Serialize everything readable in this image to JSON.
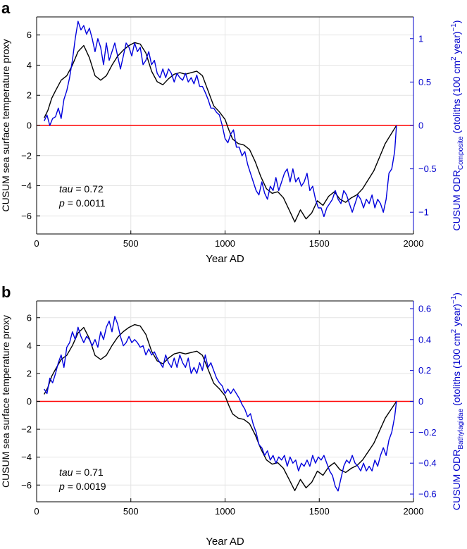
{
  "chart_data": [
    {
      "panel_label": "a",
      "type": "line",
      "xlabel": "Year AD",
      "ylabel": "CUSUM sea surface temperature proxy",
      "ylabel_right_pre": "CUSUM ODR",
      "ylabel_right_sub": "Composite",
      "ylabel_right_post": " (otoliths (100 cm",
      "ylabel_right_sup": "2",
      "ylabel_right_tail": " year)",
      "ylabel_right_sup2": "−1",
      "ylabel_right_close": ")",
      "xlim": [
        0,
        2000
      ],
      "ylim": [
        -7.2,
        7.2
      ],
      "y2lim": [
        -1.25,
        1.25
      ],
      "xticks": [
        0,
        500,
        1000,
        1500,
        2000
      ],
      "xtick_labels": [
        "0",
        "500",
        "1000",
        "1500",
        "2000"
      ],
      "yticks": [
        -6,
        -4,
        -2,
        0,
        2,
        4,
        6
      ],
      "ytick_labels": [
        "−6",
        "−4",
        "−2",
        "0",
        "2",
        "4",
        "6"
      ],
      "y2ticks": [
        -1,
        -0.5,
        0,
        0.5,
        1
      ],
      "y2tick_labels": [
        "−1",
        "−0.5",
        "0",
        "0.5",
        "1"
      ],
      "grid": true,
      "zero_line_color": "#ff0000",
      "annotation": {
        "tau_label": "tau",
        "tau_value": "= 0.72",
        "p_label": "p",
        "p_value": "= 0.0011"
      },
      "series": [
        {
          "name": "CUSUM sea surface temperature proxy",
          "axis": "left",
          "color": "#000000",
          "x": [
            40,
            60,
            80,
            100,
            130,
            160,
            190,
            220,
            250,
            280,
            310,
            340,
            370,
            400,
            430,
            460,
            490,
            520,
            550,
            580,
            610,
            640,
            670,
            700,
            730,
            760,
            790,
            820,
            850,
            880,
            910,
            940,
            970,
            1000,
            1020,
            1040,
            1070,
            1100,
            1130,
            1160,
            1190,
            1220,
            1250,
            1280,
            1310,
            1340,
            1370,
            1400,
            1430,
            1460,
            1490,
            1520,
            1550,
            1580,
            1610,
            1640,
            1670,
            1700,
            1730,
            1760,
            1790,
            1820,
            1850,
            1880,
            1910
          ],
          "values": [
            0.5,
            1.0,
            1.8,
            2.3,
            3.0,
            3.3,
            4.0,
            4.9,
            5.3,
            4.5,
            3.3,
            3.0,
            3.3,
            4.0,
            4.6,
            5.0,
            5.3,
            5.5,
            5.4,
            4.8,
            3.6,
            2.9,
            2.7,
            3.1,
            3.4,
            3.5,
            3.4,
            3.5,
            3.6,
            3.3,
            2.3,
            1.3,
            0.9,
            0.4,
            -0.3,
            -0.9,
            -1.2,
            -1.3,
            -1.6,
            -2.4,
            -3.4,
            -4.2,
            -4.5,
            -4.4,
            -4.8,
            -5.6,
            -6.4,
            -5.6,
            -6.2,
            -5.8,
            -5.0,
            -5.3,
            -4.7,
            -4.4,
            -4.9,
            -5.1,
            -4.8,
            -4.6,
            -4.2,
            -3.6,
            -3.0,
            -2.1,
            -1.2,
            -0.6,
            0.0
          ]
        },
        {
          "name": "CUSUM ODR Composite",
          "axis": "right",
          "color": "#0000dd",
          "x": [
            40,
            55,
            70,
            85,
            100,
            115,
            130,
            145,
            160,
            175,
            190,
            205,
            220,
            235,
            250,
            265,
            280,
            295,
            310,
            325,
            340,
            355,
            370,
            385,
            400,
            415,
            430,
            445,
            460,
            475,
            490,
            505,
            520,
            535,
            550,
            565,
            580,
            595,
            610,
            625,
            640,
            655,
            670,
            685,
            700,
            715,
            730,
            745,
            760,
            775,
            790,
            805,
            820,
            835,
            850,
            865,
            880,
            895,
            910,
            925,
            940,
            955,
            970,
            985,
            1000,
            1015,
            1030,
            1045,
            1060,
            1075,
            1090,
            1105,
            1120,
            1135,
            1150,
            1165,
            1180,
            1195,
            1210,
            1225,
            1240,
            1255,
            1270,
            1285,
            1300,
            1315,
            1330,
            1345,
            1360,
            1375,
            1390,
            1405,
            1420,
            1435,
            1450,
            1465,
            1480,
            1495,
            1510,
            1525,
            1540,
            1555,
            1570,
            1585,
            1600,
            1615,
            1630,
            1645,
            1660,
            1675,
            1690,
            1705,
            1720,
            1735,
            1750,
            1765,
            1780,
            1795,
            1810,
            1825,
            1840,
            1855,
            1870,
            1885,
            1900,
            1910
          ],
          "values": [
            0.05,
            0.12,
            0.0,
            0.08,
            0.1,
            0.2,
            0.08,
            0.3,
            0.4,
            0.55,
            0.75,
            1.0,
            1.2,
            1.1,
            1.15,
            1.05,
            1.12,
            1.0,
            0.85,
            1.0,
            0.9,
            0.7,
            0.95,
            0.75,
            0.85,
            0.95,
            0.8,
            0.65,
            0.8,
            0.95,
            0.9,
            0.8,
            0.95,
            0.85,
            0.9,
            0.7,
            0.75,
            0.85,
            0.7,
            0.75,
            0.6,
            0.55,
            0.65,
            0.55,
            0.65,
            0.6,
            0.5,
            0.6,
            0.55,
            0.52,
            0.6,
            0.5,
            0.55,
            0.48,
            0.58,
            0.45,
            0.45,
            0.38,
            0.3,
            0.2,
            0.2,
            0.15,
            0.12,
            0.0,
            -0.15,
            -0.2,
            -0.1,
            -0.05,
            -0.25,
            -0.25,
            -0.35,
            -0.3,
            -0.45,
            -0.55,
            -0.65,
            -0.75,
            -0.8,
            -0.65,
            -0.78,
            -0.85,
            -0.7,
            -0.75,
            -0.6,
            -0.75,
            -0.65,
            -0.55,
            -0.5,
            -0.65,
            -0.5,
            -0.65,
            -0.6,
            -0.7,
            -0.65,
            -0.55,
            -0.75,
            -0.7,
            -0.85,
            -0.95,
            -0.95,
            -1.05,
            -0.95,
            -0.9,
            -0.85,
            -0.75,
            -0.85,
            -0.9,
            -0.75,
            -0.8,
            -0.9,
            -1.0,
            -0.9,
            -0.8,
            -0.85,
            -0.95,
            -0.85,
            -0.9,
            -0.8,
            -0.95,
            -0.85,
            -0.9,
            -1.0,
            -0.85,
            -0.55,
            -0.5,
            -0.3,
            0.0
          ]
        }
      ]
    },
    {
      "panel_label": "b",
      "type": "line",
      "xlabel": "Year AD",
      "ylabel": "CUSUM sea surface temperature proxy",
      "ylabel_right_pre": "CUSUM ODR",
      "ylabel_right_sub": "Bathylagidae",
      "ylabel_right_post": " (otoliths (100 cm",
      "ylabel_right_sup": "2",
      "ylabel_right_tail": " year)",
      "ylabel_right_sup2": "−1",
      "ylabel_right_close": ")",
      "xlim": [
        0,
        2000
      ],
      "ylim": [
        -7.2,
        7.2
      ],
      "y2lim": [
        -0.65,
        0.65
      ],
      "xticks": [
        0,
        500,
        1000,
        1500,
        2000
      ],
      "xtick_labels": [
        "0",
        "500",
        "1000",
        "1500",
        "2000"
      ],
      "yticks": [
        -6,
        -4,
        -2,
        0,
        2,
        4,
        6
      ],
      "ytick_labels": [
        "−6",
        "−4",
        "−2",
        "0",
        "2",
        "4",
        "6"
      ],
      "y2ticks": [
        -0.6,
        -0.4,
        -0.2,
        0,
        0.2,
        0.4,
        0.6
      ],
      "y2tick_labels": [
        "−0.6",
        "−0.4",
        "−0.2",
        "0",
        "0.2",
        "0.4",
        "0.6"
      ],
      "grid": true,
      "zero_line_color": "#ff0000",
      "annotation": {
        "tau_label": "tau",
        "tau_value": "= 0.71",
        "p_label": "p",
        "p_value": "= 0.0019"
      },
      "series": [
        {
          "name": "CUSUM sea surface temperature proxy",
          "axis": "left",
          "color": "#000000",
          "x": [
            40,
            60,
            80,
            100,
            130,
            160,
            190,
            220,
            250,
            280,
            310,
            340,
            370,
            400,
            430,
            460,
            490,
            520,
            550,
            580,
            610,
            640,
            670,
            700,
            730,
            760,
            790,
            820,
            850,
            880,
            910,
            940,
            970,
            1000,
            1020,
            1040,
            1070,
            1100,
            1130,
            1160,
            1190,
            1220,
            1250,
            1280,
            1310,
            1340,
            1370,
            1400,
            1430,
            1460,
            1490,
            1520,
            1550,
            1580,
            1610,
            1640,
            1670,
            1700,
            1730,
            1760,
            1790,
            1820,
            1850,
            1880,
            1910
          ],
          "values": [
            0.5,
            1.0,
            1.8,
            2.3,
            3.0,
            3.3,
            4.0,
            4.9,
            5.3,
            4.5,
            3.3,
            3.0,
            3.3,
            4.0,
            4.6,
            5.0,
            5.3,
            5.5,
            5.4,
            4.8,
            3.6,
            2.9,
            2.7,
            3.1,
            3.4,
            3.5,
            3.4,
            3.5,
            3.6,
            3.3,
            2.3,
            1.3,
            0.9,
            0.4,
            -0.3,
            -0.9,
            -1.2,
            -1.3,
            -1.6,
            -2.4,
            -3.4,
            -4.2,
            -4.5,
            -4.4,
            -4.8,
            -5.6,
            -6.4,
            -5.6,
            -6.2,
            -5.8,
            -5.0,
            -5.3,
            -4.7,
            -4.4,
            -4.9,
            -5.1,
            -4.8,
            -4.6,
            -4.2,
            -3.6,
            -3.0,
            -2.1,
            -1.2,
            -0.6,
            0.0
          ]
        },
        {
          "name": "CUSUM ODR Bathylagidae",
          "axis": "right",
          "color": "#0000dd",
          "x": [
            40,
            55,
            70,
            85,
            100,
            115,
            130,
            145,
            160,
            175,
            190,
            205,
            220,
            235,
            250,
            265,
            280,
            295,
            310,
            325,
            340,
            355,
            370,
            385,
            400,
            415,
            430,
            445,
            460,
            475,
            490,
            505,
            520,
            535,
            550,
            565,
            580,
            595,
            610,
            625,
            640,
            655,
            670,
            685,
            700,
            715,
            730,
            745,
            760,
            775,
            790,
            805,
            820,
            835,
            850,
            865,
            880,
            895,
            910,
            925,
            940,
            955,
            970,
            985,
            1000,
            1015,
            1030,
            1045,
            1060,
            1075,
            1090,
            1105,
            1120,
            1135,
            1150,
            1165,
            1180,
            1195,
            1210,
            1225,
            1240,
            1255,
            1270,
            1285,
            1300,
            1315,
            1330,
            1345,
            1360,
            1375,
            1390,
            1405,
            1420,
            1435,
            1450,
            1465,
            1480,
            1495,
            1510,
            1525,
            1540,
            1555,
            1570,
            1585,
            1600,
            1615,
            1630,
            1645,
            1660,
            1675,
            1690,
            1705,
            1720,
            1735,
            1750,
            1765,
            1780,
            1795,
            1810,
            1825,
            1840,
            1855,
            1870,
            1885,
            1900,
            1910
          ],
          "values": [
            0.08,
            0.05,
            0.15,
            0.12,
            0.18,
            0.25,
            0.3,
            0.22,
            0.35,
            0.38,
            0.45,
            0.4,
            0.48,
            0.42,
            0.38,
            0.42,
            0.4,
            0.36,
            0.4,
            0.35,
            0.45,
            0.4,
            0.48,
            0.52,
            0.45,
            0.55,
            0.5,
            0.42,
            0.36,
            0.38,
            0.42,
            0.38,
            0.4,
            0.38,
            0.35,
            0.36,
            0.3,
            0.34,
            0.3,
            0.32,
            0.28,
            0.25,
            0.22,
            0.3,
            0.25,
            0.22,
            0.28,
            0.22,
            0.3,
            0.25,
            0.22,
            0.28,
            0.18,
            0.22,
            0.18,
            0.25,
            0.2,
            0.3,
            0.22,
            0.25,
            0.2,
            0.15,
            0.12,
            0.1,
            0.05,
            0.08,
            0.05,
            0.08,
            0.05,
            0.02,
            -0.02,
            -0.05,
            -0.1,
            -0.08,
            -0.15,
            -0.2,
            -0.28,
            -0.3,
            -0.35,
            -0.32,
            -0.38,
            -0.35,
            -0.4,
            -0.36,
            -0.38,
            -0.35,
            -0.42,
            -0.36,
            -0.4,
            -0.38,
            -0.45,
            -0.4,
            -0.42,
            -0.38,
            -0.42,
            -0.35,
            -0.4,
            -0.36,
            -0.38,
            -0.35,
            -0.4,
            -0.45,
            -0.48,
            -0.55,
            -0.58,
            -0.5,
            -0.42,
            -0.38,
            -0.4,
            -0.35,
            -0.4,
            -0.42,
            -0.45,
            -0.4,
            -0.45,
            -0.42,
            -0.45,
            -0.38,
            -0.42,
            -0.35,
            -0.3,
            -0.35,
            -0.25,
            -0.2,
            -0.1,
            0.0
          ]
        }
      ]
    }
  ]
}
